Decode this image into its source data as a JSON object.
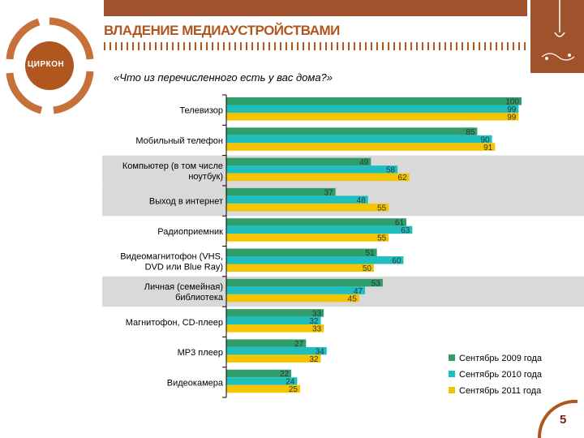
{
  "header": {
    "title": "ВЛАДЕНИЕ МЕДИАУСТРОЙСТВАМИ",
    "question": "«Что из перечисленного есть у вас дома?»",
    "logo_text": "ЦИРКОН",
    "page_number": "5"
  },
  "colors": {
    "brand": "#a0522d",
    "series_2009": "#2e9e6a",
    "series_2010": "#1fbfbf",
    "series_2011": "#f5c400",
    "highlight_band": "#d9d9d9"
  },
  "chart_data": {
    "type": "bar",
    "orientation": "horizontal",
    "categories": [
      "Телевизор",
      "Мобильный телефон",
      "Компьютер (в том числе ноутбук)",
      "Выход в интернет",
      "Радиоприемник",
      "Видеомагнитофон (VHS, DVD или Blue Ray)",
      "Личная (семейная) библиотека",
      "Магнитофон, CD-плеер",
      "MP3 плеер",
      "Видеокамера"
    ],
    "series": [
      {
        "name": "Сентябрь 2009 года",
        "values": [
          100,
          85,
          49,
          37,
          61,
          51,
          53,
          33,
          27,
          22
        ]
      },
      {
        "name": "Сентябрь 2010 года",
        "values": [
          99,
          90,
          58,
          48,
          63,
          60,
          47,
          32,
          34,
          24
        ]
      },
      {
        "name": "Сентябрь 2011 года",
        "values": [
          99,
          91,
          62,
          55,
          55,
          50,
          45,
          33,
          32,
          25
        ]
      }
    ],
    "highlighted_categories": [
      2,
      3,
      6
    ],
    "xlim": [
      0,
      100
    ],
    "legend_position": "bottom-right",
    "title": "",
    "xlabel": "",
    "ylabel": ""
  }
}
